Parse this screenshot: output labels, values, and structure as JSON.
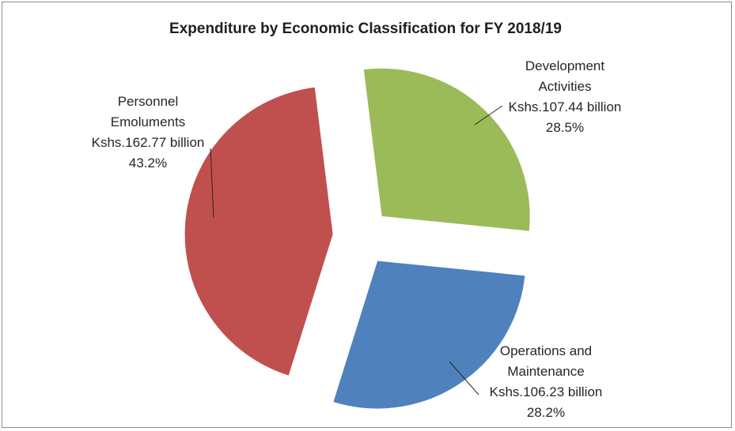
{
  "chart_data": {
    "type": "pie",
    "title": "Expenditure by Economic Classification for FY 2018/19",
    "exploded": true,
    "slices": [
      {
        "name_lines": [
          "Development",
          "Activities"
        ],
        "value_text": "Kshs.107.44 billion",
        "percent_text": "28.5%",
        "value": 107.44,
        "percent": 28.5,
        "color": "#9bbb59"
      },
      {
        "name_lines": [
          "Operations and",
          "Maintenance"
        ],
        "value_text": "Kshs.106.23 billion",
        "percent_text": "28.2%",
        "value": 106.23,
        "percent": 28.2,
        "color": "#4f81bd"
      },
      {
        "name_lines": [
          "Personnel",
          "Emoluments"
        ],
        "value_text": "Kshs.162.77 billion",
        "percent_text": "43.2%",
        "value": 162.77,
        "percent": 43.2,
        "color": "#c0504d"
      }
    ]
  }
}
